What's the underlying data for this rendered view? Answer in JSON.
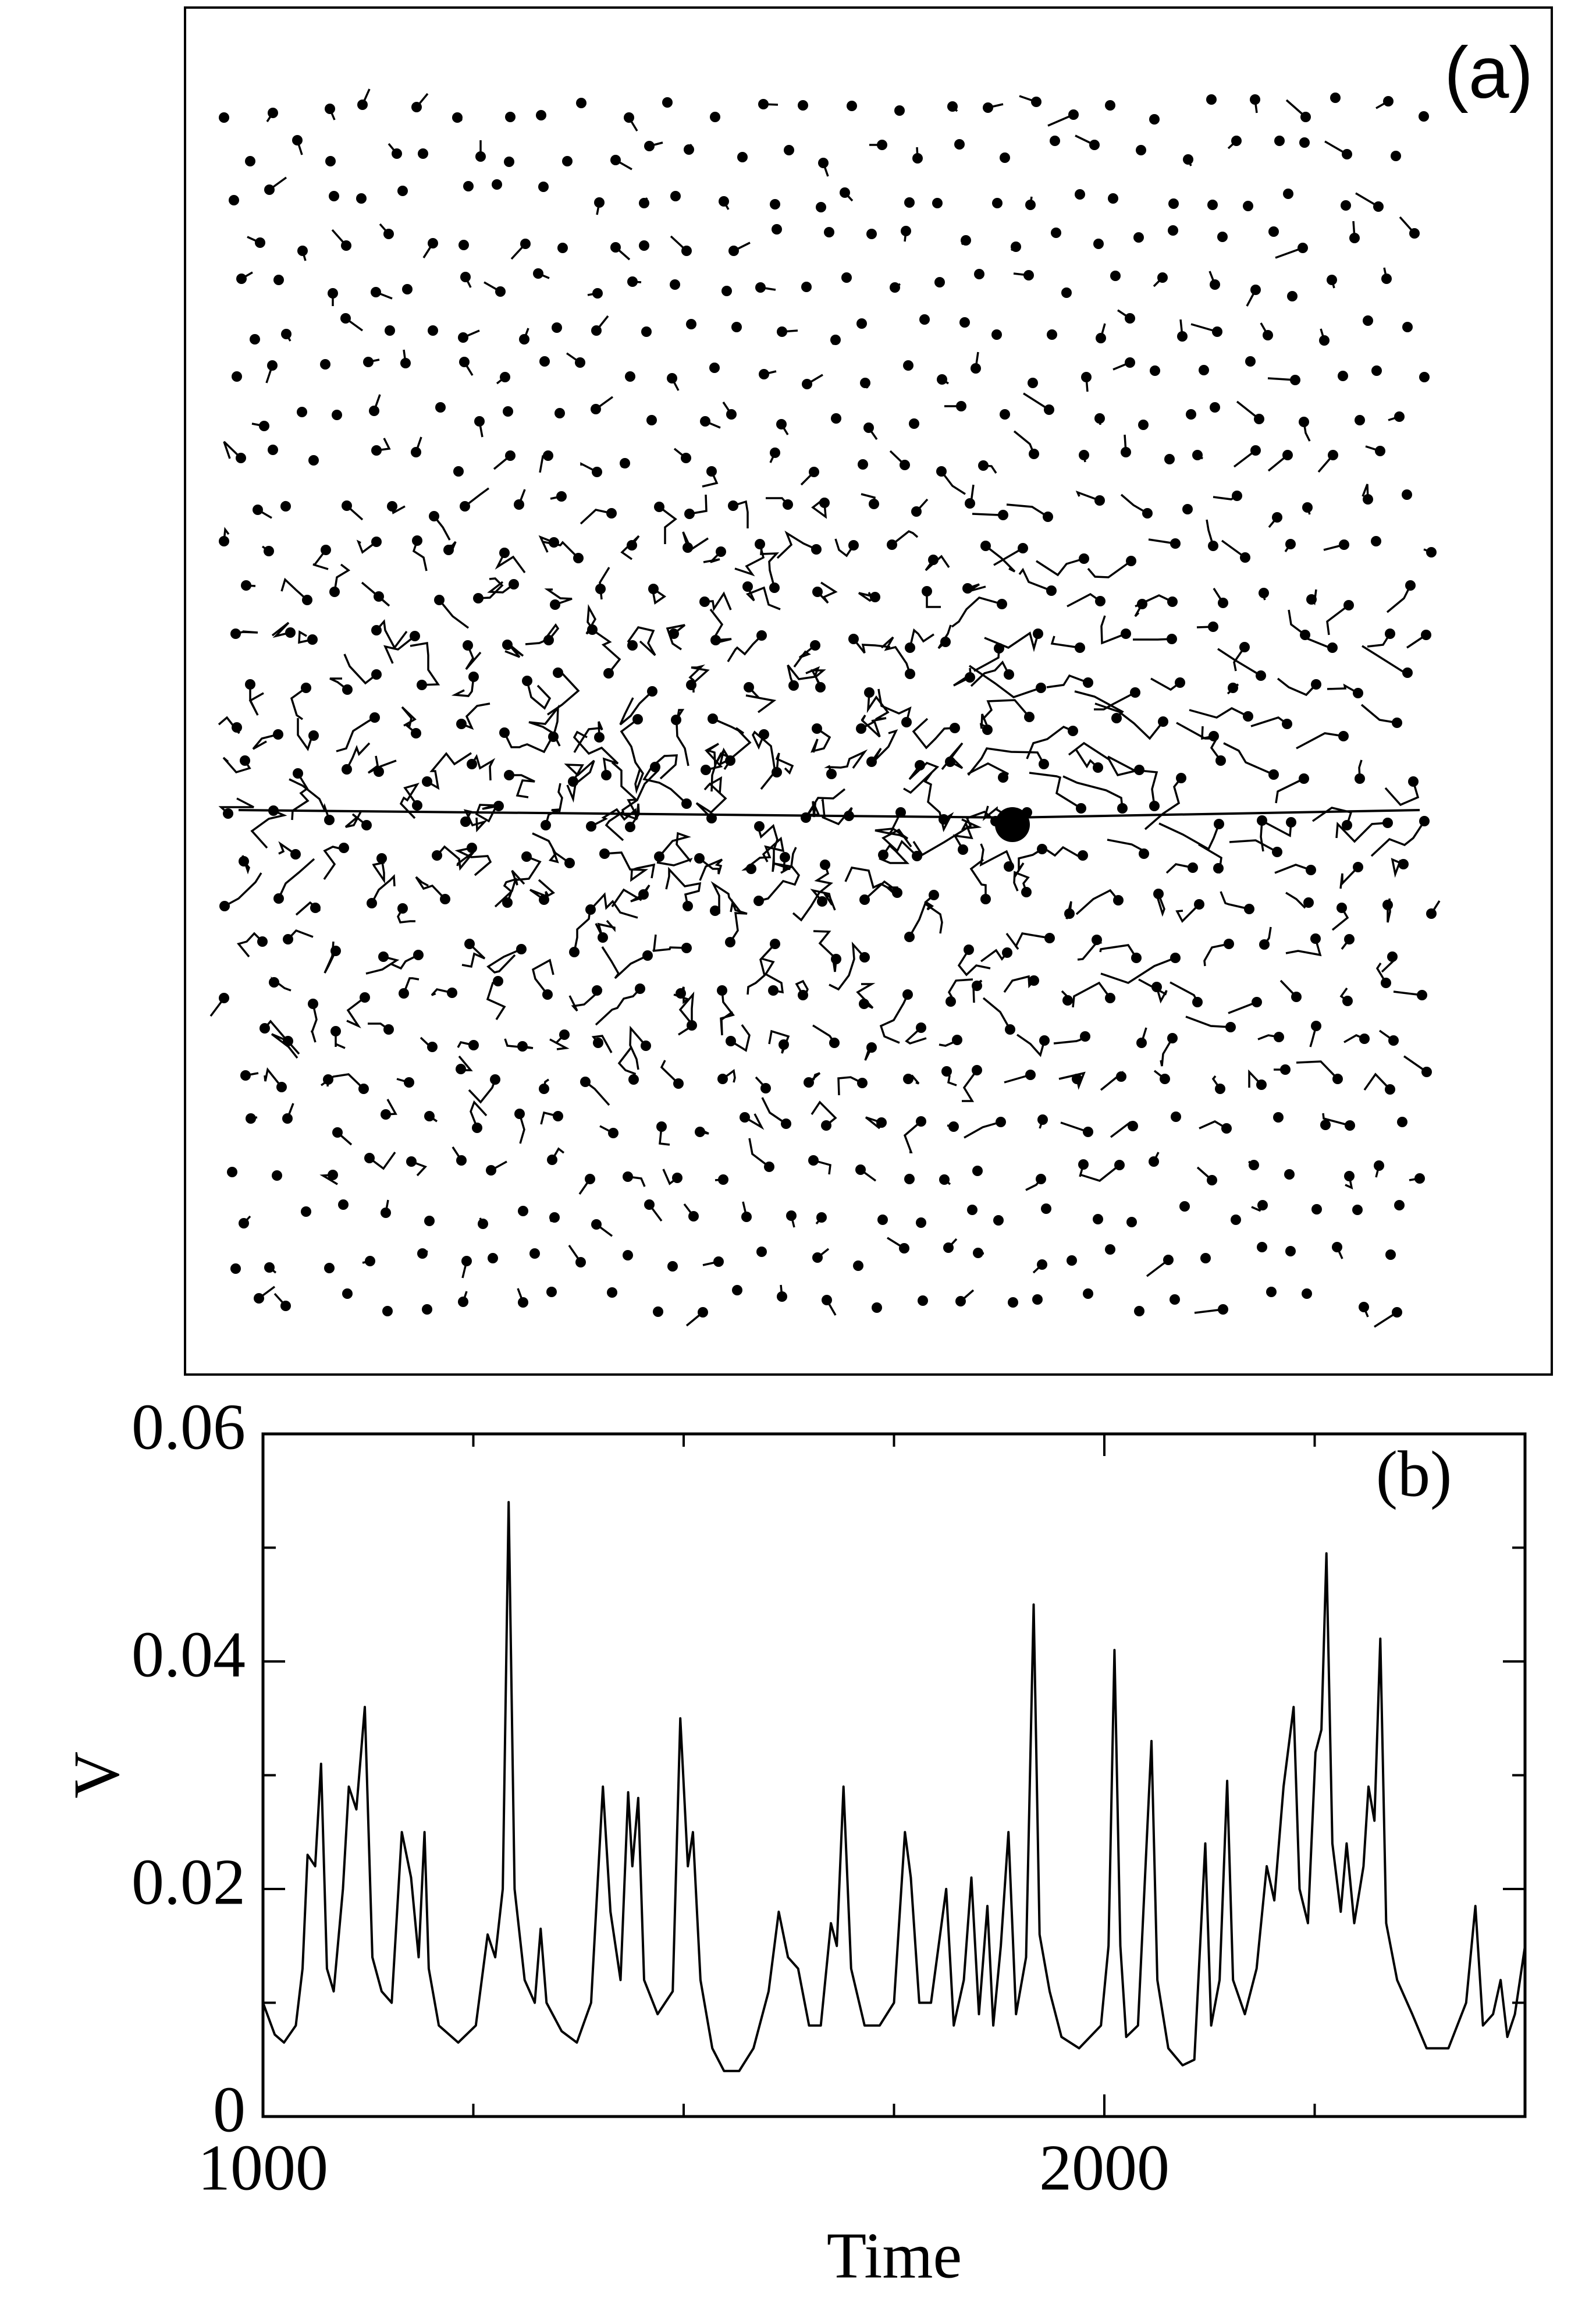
{
  "panel_a": {
    "label": "(a)"
  },
  "chart_data": {
    "type": "line",
    "label": "(b)",
    "x_label": "Time",
    "y_label": "V",
    "x": [
      1000,
      1014,
      1025,
      1039,
      1047,
      1053,
      1062,
      1069,
      1076,
      1084,
      1095,
      1102,
      1111,
      1121,
      1130,
      1141,
      1153,
      1165,
      1176,
      1185,
      1192,
      1197,
      1209,
      1232,
      1253,
      1267,
      1276,
      1285,
      1292,
      1299,
      1311,
      1323,
      1330,
      1337,
      1355,
      1373,
      1390,
      1404,
      1413,
      1425,
      1434,
      1439,
      1446,
      1453,
      1469,
      1487,
      1496,
      1505,
      1511,
      1520,
      1534,
      1548,
      1566,
      1583,
      1601,
      1613,
      1624,
      1636,
      1649,
      1663,
      1675,
      1682,
      1690,
      1699,
      1715,
      1733,
      1750,
      1763,
      1770,
      1780,
      1794,
      1812,
      1821,
      1833,
      1842,
      1851,
      1861,
      1868,
      1877,
      1886,
      1895,
      1907,
      1916,
      1923,
      1935,
      1949,
      1970,
      1996,
      2005,
      2012,
      2019,
      2026,
      2040,
      2056,
      2063,
      2076,
      2093,
      2107,
      2120,
      2127,
      2137,
      2146,
      2153,
      2167,
      2181,
      2193,
      2202,
      2213,
      2225,
      2232,
      2242,
      2251,
      2258,
      2264,
      2271,
      2281,
      2288,
      2297,
      2308,
      2314,
      2321,
      2328,
      2335,
      2348,
      2366,
      2383,
      2409,
      2430,
      2441,
      2450,
      2462,
      2471,
      2479,
      2488,
      2500
    ],
    "values": [
      0.01,
      0.0072,
      0.0065,
      0.008,
      0.013,
      0.023,
      0.022,
      0.031,
      0.013,
      0.011,
      0.02,
      0.029,
      0.027,
      0.036,
      0.014,
      0.011,
      0.01,
      0.025,
      0.021,
      0.014,
      0.025,
      0.013,
      0.008,
      0.0065,
      0.008,
      0.016,
      0.014,
      0.02,
      0.054,
      0.02,
      0.012,
      0.01,
      0.0165,
      0.01,
      0.0075,
      0.0065,
      0.01,
      0.029,
      0.018,
      0.012,
      0.0285,
      0.022,
      0.028,
      0.012,
      0.009,
      0.011,
      0.035,
      0.022,
      0.025,
      0.012,
      0.006,
      0.004,
      0.004,
      0.006,
      0.011,
      0.018,
      0.014,
      0.013,
      0.008,
      0.008,
      0.017,
      0.015,
      0.029,
      0.013,
      0.008,
      0.008,
      0.01,
      0.025,
      0.021,
      0.01,
      0.01,
      0.02,
      0.008,
      0.012,
      0.021,
      0.009,
      0.0185,
      0.008,
      0.015,
      0.025,
      0.009,
      0.014,
      0.045,
      0.016,
      0.011,
      0.007,
      0.006,
      0.008,
      0.015,
      0.041,
      0.015,
      0.007,
      0.008,
      0.033,
      0.012,
      0.006,
      0.0045,
      0.005,
      0.024,
      0.008,
      0.012,
      0.0295,
      0.012,
      0.009,
      0.013,
      0.022,
      0.019,
      0.029,
      0.036,
      0.02,
      0.017,
      0.032,
      0.034,
      0.0495,
      0.024,
      0.018,
      0.024,
      0.017,
      0.022,
      0.029,
      0.026,
      0.042,
      0.017,
      0.012,
      0.009,
      0.006,
      0.006,
      0.01,
      0.0185,
      0.008,
      0.009,
      0.012,
      0.007,
      0.009,
      0.015
    ],
    "color": "#000000",
    "xlim": [
      1000,
      2500
    ],
    "xticks": [
      1000,
      2000
    ],
    "xminor": [
      1250,
      1500,
      1750,
      2250
    ],
    "ylim": [
      0,
      0.06
    ],
    "yticks": [
      0,
      0.02,
      0.04,
      0.06
    ],
    "yminor": [
      0.01,
      0.03,
      0.05
    ]
  }
}
